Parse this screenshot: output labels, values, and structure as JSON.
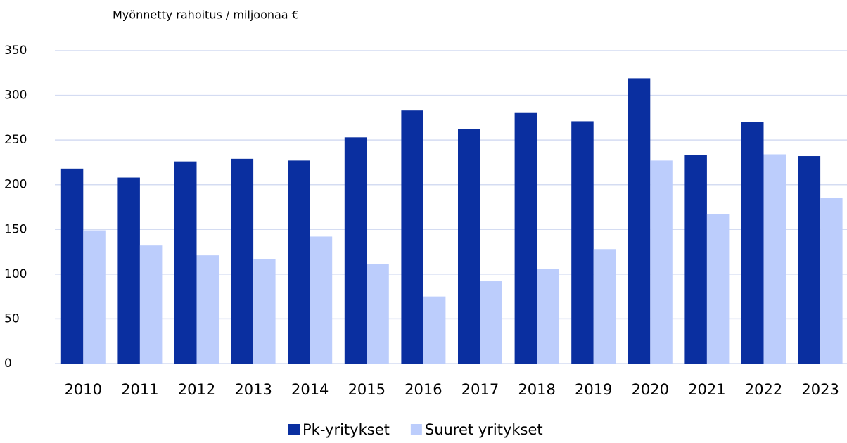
{
  "chart_data": {
    "type": "bar",
    "title": "Myönnetty rahoitus / miljoonaa €",
    "categories": [
      "2010",
      "2011",
      "2012",
      "2013",
      "2014",
      "2015",
      "2016",
      "2017",
      "2018",
      "2019",
      "2020",
      "2021",
      "2022",
      "2023"
    ],
    "series": [
      {
        "name": "Pk-yritykset",
        "color": "#0a2fa0",
        "values": [
          218,
          208,
          226,
          229,
          227,
          253,
          283,
          262,
          281,
          271,
          319,
          233,
          270,
          232
        ]
      },
      {
        "name": "Suuret yritykset",
        "color": "#bccdfc",
        "values": [
          149,
          132,
          121,
          117,
          142,
          111,
          75,
          92,
          106,
          128,
          227,
          167,
          234,
          185
        ]
      }
    ],
    "ylim": [
      0,
      350
    ],
    "yticks": [
      0,
      50,
      100,
      150,
      200,
      250,
      300,
      350
    ],
    "grid": true,
    "legend": "bottom"
  }
}
